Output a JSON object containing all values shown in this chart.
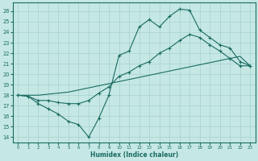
{
  "xlabel": "Humidex (Indice chaleur)",
  "xlim": [
    -0.5,
    23.5
  ],
  "ylim": [
    13.5,
    26.8
  ],
  "xticks": [
    0,
    1,
    2,
    3,
    4,
    5,
    6,
    7,
    8,
    9,
    10,
    11,
    12,
    13,
    14,
    15,
    16,
    17,
    18,
    19,
    20,
    21,
    22,
    23
  ],
  "yticks": [
    14,
    15,
    16,
    17,
    18,
    19,
    20,
    21,
    22,
    23,
    24,
    25,
    26
  ],
  "bg_color": "#c5e8e5",
  "grid_color": "#a8d0cc",
  "line_color": "#1a6b60",
  "series1_x": [
    0,
    1,
    2,
    3,
    4,
    5,
    6,
    7,
    8,
    9,
    10,
    11,
    12,
    13,
    14,
    15,
    16,
    17,
    18,
    19,
    20,
    21,
    22,
    23
  ],
  "series1_y": [
    18.0,
    17.9,
    17.2,
    16.7,
    16.2,
    15.5,
    15.2,
    14.0,
    15.8,
    18.0,
    21.8,
    22.2,
    24.5,
    25.2,
    24.5,
    25.5,
    26.2,
    26.1,
    24.2,
    23.5,
    22.8,
    22.5,
    21.2,
    20.8
  ],
  "series2_x": [
    0,
    1,
    2,
    3,
    4,
    5,
    6,
    7,
    8,
    9,
    10,
    11,
    12,
    13,
    14,
    15,
    16,
    17,
    18,
    19,
    20,
    21,
    22,
    23
  ],
  "series2_y": [
    18.0,
    17.9,
    17.5,
    17.5,
    17.3,
    17.2,
    17.2,
    17.5,
    18.2,
    18.8,
    19.8,
    20.2,
    20.8,
    21.2,
    22.0,
    22.5,
    23.2,
    23.8,
    23.5,
    22.8,
    22.2,
    21.5,
    20.8,
    20.8
  ],
  "series3_x": [
    0,
    1,
    2,
    3,
    4,
    5,
    6,
    7,
    8,
    9,
    10,
    11,
    12,
    13,
    14,
    15,
    16,
    17,
    18,
    19,
    20,
    21,
    22,
    23
  ],
  "series3_y": [
    18.0,
    18.0,
    18.0,
    18.1,
    18.2,
    18.3,
    18.5,
    18.7,
    18.9,
    19.1,
    19.3,
    19.5,
    19.7,
    19.9,
    20.1,
    20.3,
    20.5,
    20.7,
    20.9,
    21.1,
    21.3,
    21.5,
    21.7,
    20.8
  ]
}
